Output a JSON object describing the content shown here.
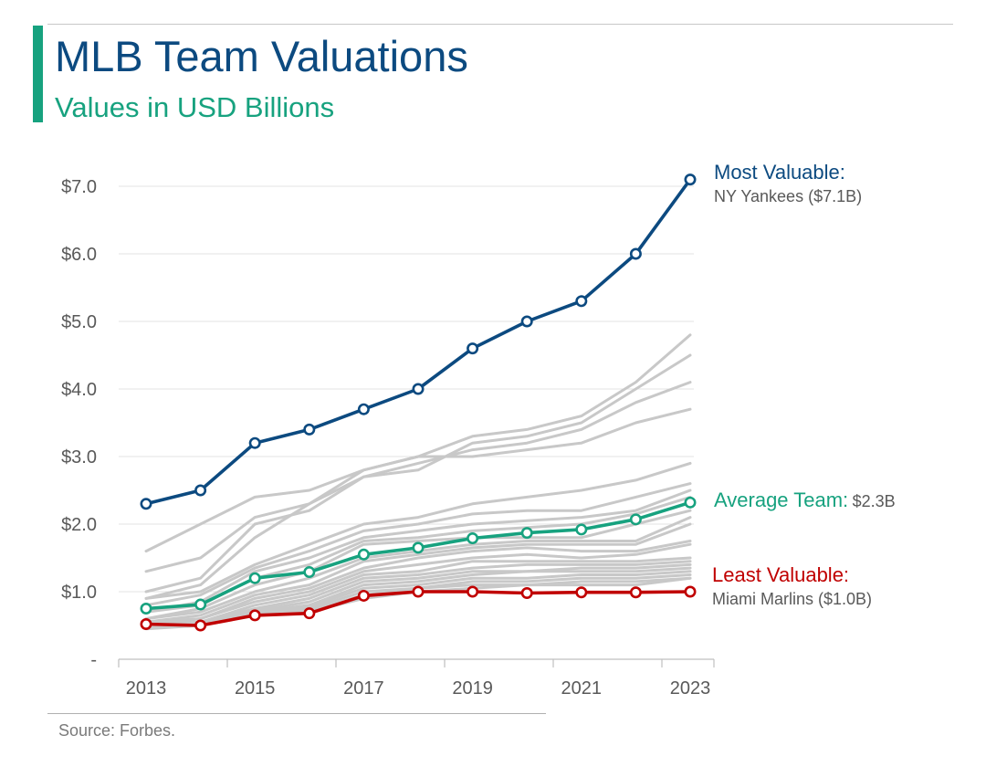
{
  "header": {
    "title": "MLB Team Valuations",
    "subtitle": "Values in USD Billions"
  },
  "footer": {
    "source": "Source: Forbes."
  },
  "colors": {
    "accent_bar": "#17a27f",
    "title": "#0c4a80",
    "most_valuable": "#0c4a80",
    "average": "#17a27f",
    "least_valuable": "#c00000",
    "other_teams": "#c8c8c8",
    "gridline": "#e3e3e3"
  },
  "annotations": {
    "most": {
      "label": "Most Valuable:",
      "detail": "NY Yankees ($7.1B)"
    },
    "average": {
      "label": "Average Team:",
      "detail": "$2.3B"
    },
    "least": {
      "label": "Least Valuable:",
      "detail": "Miami Marlins ($1.0B)"
    }
  },
  "chart_data": {
    "type": "line",
    "x": [
      2013,
      2014,
      2015,
      2016,
      2017,
      2018,
      2019,
      2020,
      2021,
      2022,
      2023
    ],
    "x_tick_labels": [
      "2013",
      "2015",
      "2017",
      "2019",
      "2021",
      "2023"
    ],
    "y_tick_labels": [
      "-",
      "$1.0",
      "$2.0",
      "$3.0",
      "$4.0",
      "$5.0",
      "$6.0",
      "$7.0"
    ],
    "ylim": [
      0,
      7
    ],
    "grid": true,
    "series": [
      {
        "role": "most",
        "values": [
          2.3,
          2.5,
          3.2,
          3.4,
          3.7,
          4.0,
          4.6,
          5.0,
          5.3,
          6.0,
          7.1
        ],
        "markers": true
      },
      {
        "role": "average",
        "values": [
          0.75,
          0.81,
          1.2,
          1.29,
          1.55,
          1.65,
          1.79,
          1.87,
          1.92,
          2.07,
          2.32
        ],
        "markers": true
      },
      {
        "role": "least",
        "values": [
          0.52,
          0.5,
          0.65,
          0.68,
          0.94,
          1.0,
          1.0,
          0.98,
          0.99,
          0.99,
          1.0
        ],
        "markers": true
      },
      {
        "role": "other",
        "values": [
          1.6,
          2.0,
          2.4,
          2.5,
          2.8,
          3.0,
          3.3,
          3.4,
          3.6,
          4.1,
          4.8
        ]
      },
      {
        "role": "other",
        "values": [
          1.3,
          1.5,
          2.1,
          2.3,
          2.7,
          2.8,
          3.2,
          3.3,
          3.5,
          4.0,
          4.5
        ]
      },
      {
        "role": "other",
        "values": [
          1.0,
          1.2,
          2.0,
          2.2,
          2.7,
          2.9,
          3.1,
          3.2,
          3.4,
          3.8,
          4.1
        ]
      },
      {
        "role": "other",
        "values": [
          0.9,
          1.1,
          1.8,
          2.3,
          2.8,
          3.0,
          3.0,
          3.1,
          3.2,
          3.5,
          3.7
        ]
      },
      {
        "role": "other",
        "values": [
          0.9,
          1.0,
          1.4,
          1.7,
          2.0,
          2.1,
          2.3,
          2.4,
          2.5,
          2.65,
          2.9
        ]
      },
      {
        "role": "other",
        "values": [
          0.8,
          0.95,
          1.35,
          1.6,
          1.9,
          2.0,
          2.15,
          2.2,
          2.2,
          2.4,
          2.6
        ]
      },
      {
        "role": "other",
        "values": [
          0.7,
          0.85,
          1.3,
          1.5,
          1.8,
          1.9,
          2.0,
          2.05,
          2.1,
          2.2,
          2.5
        ]
      },
      {
        "role": "other",
        "values": [
          0.7,
          0.8,
          1.2,
          1.4,
          1.75,
          1.8,
          1.9,
          1.95,
          2.0,
          2.15,
          2.4
        ]
      },
      {
        "role": "other",
        "values": [
          0.6,
          0.75,
          1.1,
          1.3,
          1.7,
          1.75,
          1.8,
          1.8,
          1.8,
          2.0,
          2.2
        ]
      },
      {
        "role": "other",
        "values": [
          0.6,
          0.7,
          1.0,
          1.2,
          1.5,
          1.6,
          1.7,
          1.75,
          1.75,
          1.75,
          2.1
        ]
      },
      {
        "role": "other",
        "values": [
          0.55,
          0.65,
          0.95,
          1.1,
          1.45,
          1.55,
          1.65,
          1.7,
          1.7,
          1.7,
          2.0
        ]
      },
      {
        "role": "other",
        "values": [
          0.55,
          0.6,
          0.9,
          1.05,
          1.35,
          1.5,
          1.6,
          1.65,
          1.6,
          1.6,
          1.75
        ]
      },
      {
        "role": "other",
        "values": [
          0.5,
          0.6,
          0.85,
          1.0,
          1.3,
          1.4,
          1.5,
          1.55,
          1.5,
          1.55,
          1.7
        ]
      },
      {
        "role": "other",
        "values": [
          0.5,
          0.55,
          0.8,
          0.95,
          1.25,
          1.3,
          1.45,
          1.45,
          1.45,
          1.45,
          1.5
        ]
      },
      {
        "role": "other",
        "values": [
          0.5,
          0.55,
          0.75,
          0.9,
          1.2,
          1.25,
          1.35,
          1.4,
          1.4,
          1.4,
          1.45
        ]
      },
      {
        "role": "other",
        "values": [
          0.48,
          0.52,
          0.72,
          0.85,
          1.15,
          1.2,
          1.3,
          1.3,
          1.35,
          1.35,
          1.4
        ]
      },
      {
        "role": "other",
        "values": [
          0.48,
          0.5,
          0.7,
          0.8,
          1.1,
          1.15,
          1.25,
          1.3,
          1.3,
          1.3,
          1.35
        ]
      },
      {
        "role": "other",
        "values": [
          0.47,
          0.5,
          0.7,
          0.78,
          1.05,
          1.1,
          1.2,
          1.2,
          1.25,
          1.25,
          1.3
        ]
      },
      {
        "role": "other",
        "values": [
          0.46,
          0.5,
          0.68,
          0.75,
          1.0,
          1.05,
          1.15,
          1.15,
          1.2,
          1.2,
          1.25
        ]
      },
      {
        "role": "other",
        "values": [
          0.46,
          0.5,
          0.66,
          0.72,
          0.95,
          1.05,
          1.1,
          1.1,
          1.15,
          1.15,
          1.2
        ]
      },
      {
        "role": "other",
        "values": [
          0.45,
          0.5,
          0.65,
          0.7,
          0.9,
          1.0,
          1.05,
          1.1,
          1.1,
          1.1,
          1.2
        ]
      }
    ]
  }
}
